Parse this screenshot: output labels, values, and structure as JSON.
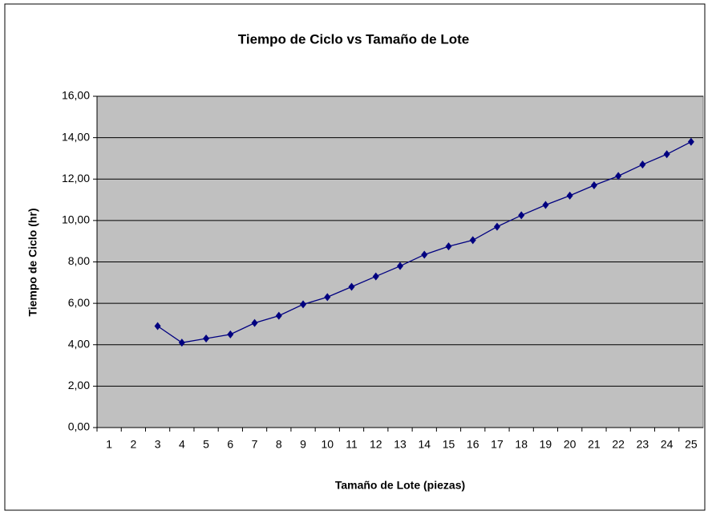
{
  "chart_data": {
    "type": "line",
    "title": "Tiempo de Ciclo vs Tamaño de Lote",
    "x_label": "Tamaño de Lote (piezas)",
    "y_label": "Tiempo de Ciclo (hr)",
    "categories": [
      1,
      2,
      3,
      4,
      5,
      6,
      7,
      8,
      9,
      10,
      11,
      12,
      13,
      14,
      15,
      16,
      17,
      18,
      19,
      20,
      21,
      22,
      23,
      24,
      25
    ],
    "series": [
      {
        "name": "Tiempo de Ciclo",
        "color": "#000080",
        "values": [
          null,
          null,
          4.9,
          4.1,
          4.3,
          4.5,
          5.05,
          5.4,
          5.95,
          6.3,
          6.8,
          7.3,
          7.8,
          8.35,
          8.75,
          9.05,
          9.7,
          10.25,
          10.75,
          11.2,
          11.7,
          12.15,
          12.7,
          13.2,
          13.8
        ]
      }
    ],
    "ylim": [
      0,
      16
    ],
    "yticks": [
      {
        "value": 0,
        "label": "0,00"
      },
      {
        "value": 2,
        "label": "2,00"
      },
      {
        "value": 4,
        "label": "4,00"
      },
      {
        "value": 6,
        "label": "6,00"
      },
      {
        "value": 8,
        "label": "8,00"
      },
      {
        "value": 10,
        "label": "10,00"
      },
      {
        "value": 12,
        "label": "12,00"
      },
      {
        "value": 14,
        "label": "14,00"
      },
      {
        "value": 16,
        "label": "16,00"
      }
    ],
    "grid": true
  }
}
